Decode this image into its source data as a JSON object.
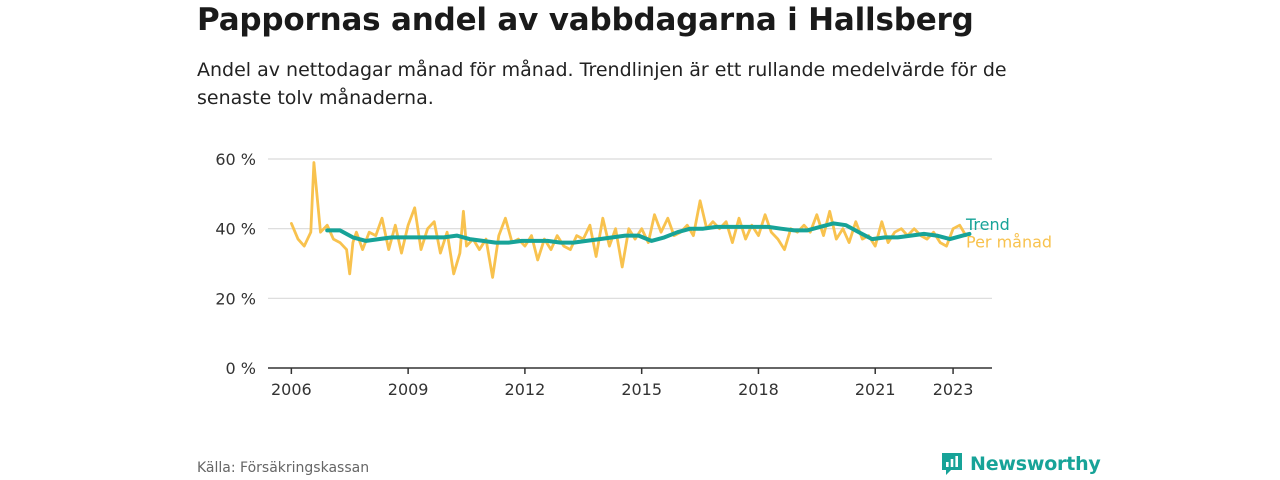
{
  "title": "Pappornas andel av vabbdagarna i Hallsberg",
  "subtitle": "Andel av nettodagar månad för månad. Trendlinjen är ett rullande medelvärde för de senaste tolv månaderna.",
  "source": "Källa: Försäkringskassan",
  "brand": {
    "name": "Newsworthy",
    "icon": "newsworthy-logo-icon"
  },
  "colors": {
    "trend": "#17a398",
    "monthly": "#f8c24e",
    "grid": "#d9d9d9",
    "axis": "#333333"
  },
  "chart_data": {
    "type": "line",
    "title": "Pappornas andel av vabbdagarna i Hallsberg",
    "xlabel": "",
    "ylabel": "",
    "xlim": [
      2005.4,
      2024.0
    ],
    "ylim": [
      0,
      60
    ],
    "yticks": [
      0,
      20,
      40,
      60
    ],
    "ytick_labels": [
      "0 %",
      "20 %",
      "40 %",
      "60 %"
    ],
    "xticks": [
      2006,
      2009,
      2012,
      2015,
      2018,
      2021,
      2023
    ],
    "xtick_labels": [
      "2006",
      "2009",
      "2012",
      "2015",
      "2018",
      "2021",
      "2023"
    ],
    "grid": true,
    "legend": "right-end labels",
    "series": [
      {
        "name": "Per månad",
        "x": [
          2006.0,
          2006.17,
          2006.33,
          2006.5,
          2006.58,
          2006.75,
          2006.92,
          2007.08,
          2007.25,
          2007.42,
          2007.5,
          2007.58,
          2007.67,
          2007.83,
          2008.0,
          2008.17,
          2008.33,
          2008.5,
          2008.67,
          2008.83,
          2009.0,
          2009.17,
          2009.33,
          2009.5,
          2009.67,
          2009.83,
          2010.0,
          2010.17,
          2010.33,
          2010.42,
          2010.5,
          2010.67,
          2010.83,
          2011.0,
          2011.17,
          2011.33,
          2011.5,
          2011.67,
          2011.83,
          2012.0,
          2012.17,
          2012.33,
          2012.5,
          2012.67,
          2012.83,
          2013.0,
          2013.17,
          2013.33,
          2013.5,
          2013.67,
          2013.83,
          2014.0,
          2014.17,
          2014.33,
          2014.5,
          2014.67,
          2014.83,
          2015.0,
          2015.17,
          2015.33,
          2015.5,
          2015.67,
          2015.83,
          2016.0,
          2016.17,
          2016.33,
          2016.5,
          2016.67,
          2016.83,
          2017.0,
          2017.17,
          2017.33,
          2017.5,
          2017.67,
          2017.83,
          2018.0,
          2018.17,
          2018.33,
          2018.5,
          2018.67,
          2018.83,
          2019.0,
          2019.17,
          2019.33,
          2019.5,
          2019.67,
          2019.83,
          2020.0,
          2020.17,
          2020.33,
          2020.5,
          2020.67,
          2020.83,
          2021.0,
          2021.17,
          2021.33,
          2021.5,
          2021.67,
          2021.83,
          2022.0,
          2022.17,
          2022.33,
          2022.5,
          2022.67,
          2022.83,
          2023.0,
          2023.17,
          2023.33
        ],
        "values": [
          41.5,
          37,
          35,
          39,
          59,
          39,
          41,
          37,
          36,
          34,
          27,
          36,
          39,
          34,
          39,
          38,
          43,
          34,
          41,
          33,
          41,
          46,
          34,
          40,
          42,
          33,
          39,
          27,
          33,
          45,
          35,
          37,
          34,
          37,
          26,
          38,
          43,
          36,
          37,
          35,
          38,
          31,
          37,
          34,
          38,
          35,
          34,
          38,
          37,
          41,
          32,
          43,
          35,
          40,
          29,
          40,
          37,
          40,
          36,
          44,
          39,
          43,
          38,
          39,
          41,
          38,
          48,
          40,
          42,
          40,
          42,
          36,
          43,
          37,
          41,
          38,
          44,
          39,
          37,
          34,
          40,
          39,
          41,
          39,
          44,
          38,
          45,
          37,
          40,
          36,
          42,
          37,
          38,
          35,
          42,
          36,
          39,
          40,
          38,
          40,
          38,
          37,
          39,
          36,
          35,
          40,
          41,
          38
        ],
        "color": "#f8c24e"
      },
      {
        "name": "Trend",
        "x": [
          2006.92,
          2007.25,
          2007.58,
          2007.92,
          2008.25,
          2008.58,
          2008.92,
          2009.25,
          2009.58,
          2009.92,
          2010.25,
          2010.58,
          2010.92,
          2011.25,
          2011.58,
          2011.92,
          2012.25,
          2012.58,
          2012.92,
          2013.25,
          2013.58,
          2013.92,
          2014.25,
          2014.58,
          2014.92,
          2015.25,
          2015.58,
          2015.92,
          2016.25,
          2016.58,
          2016.92,
          2017.25,
          2017.58,
          2017.92,
          2018.25,
          2018.58,
          2018.92,
          2019.25,
          2019.58,
          2019.92,
          2020.25,
          2020.58,
          2020.92,
          2021.25,
          2021.58,
          2021.92,
          2022.25,
          2022.58,
          2022.92,
          2023.25,
          2023.42
        ],
        "values": [
          39.5,
          39.5,
          37.5,
          36.5,
          37,
          37.5,
          37.5,
          37.5,
          37.5,
          37.5,
          38,
          37,
          36.5,
          36,
          36,
          36.5,
          36.5,
          36.5,
          36,
          36,
          36.5,
          37,
          37.5,
          38,
          38,
          36.5,
          37.5,
          39,
          40,
          40,
          40.5,
          40.5,
          40.5,
          40.5,
          40.5,
          40,
          39.5,
          39.5,
          40.5,
          41.5,
          41,
          39,
          37,
          37.5,
          37.5,
          38,
          38.5,
          38,
          37,
          38,
          38.5
        ],
        "color": "#17a398"
      }
    ]
  }
}
